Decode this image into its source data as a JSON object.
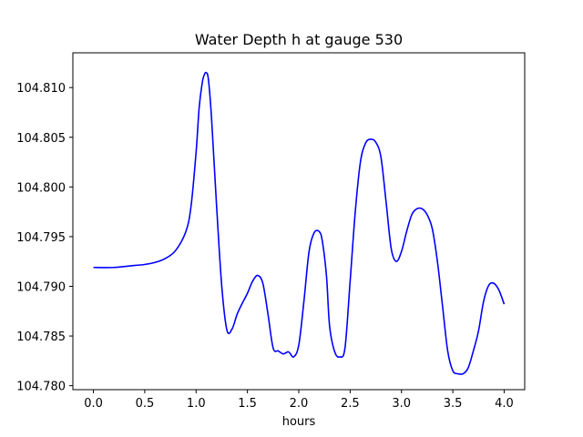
{
  "chart_data": {
    "type": "line",
    "title": "Water Depth h at gauge 530",
    "xlabel": "hours",
    "ylabel": "",
    "xlim": [
      -0.2,
      4.2
    ],
    "ylim": [
      104.7796,
      104.8135
    ],
    "x_ticks": [
      0.0,
      0.5,
      1.0,
      1.5,
      2.0,
      2.5,
      3.0,
      3.5,
      4.0
    ],
    "x_tick_labels": [
      "0.0",
      "0.5",
      "1.0",
      "1.5",
      "2.0",
      "2.5",
      "3.0",
      "3.5",
      "4.0"
    ],
    "y_ticks": [
      104.78,
      104.785,
      104.79,
      104.795,
      104.8,
      104.805,
      104.81
    ],
    "y_tick_labels": [
      "104.780",
      "104.785",
      "104.790",
      "104.795",
      "104.800",
      "104.805",
      "104.810"
    ],
    "grid": false,
    "series": [
      {
        "color": "#0000ff",
        "x": [
          0.0,
          0.2,
          0.4,
          0.5,
          0.6,
          0.7,
          0.8,
          0.9,
          0.95,
          1.0,
          1.03,
          1.06,
          1.08,
          1.1,
          1.12,
          1.15,
          1.2,
          1.25,
          1.3,
          1.35,
          1.4,
          1.45,
          1.5,
          1.55,
          1.6,
          1.65,
          1.7,
          1.75,
          1.8,
          1.85,
          1.9,
          1.95,
          2.0,
          2.05,
          2.1,
          2.15,
          2.2,
          2.23,
          2.27,
          2.3,
          2.35,
          2.4,
          2.45,
          2.5,
          2.55,
          2.6,
          2.65,
          2.7,
          2.75,
          2.8,
          2.85,
          2.9,
          2.95,
          3.0,
          3.05,
          3.1,
          3.15,
          3.2,
          3.25,
          3.3,
          3.35,
          3.4,
          3.45,
          3.5,
          3.55,
          3.6,
          3.65,
          3.7,
          3.75,
          3.8,
          3.85,
          3.9,
          3.95,
          4.0
        ],
        "y": [
          104.7919,
          104.7919,
          104.7921,
          104.7922,
          104.7924,
          104.7928,
          104.7936,
          104.7955,
          104.798,
          104.8035,
          104.808,
          104.8105,
          104.8113,
          104.8115,
          104.8108,
          104.807,
          104.798,
          104.79,
          104.7856,
          104.7857,
          104.7872,
          104.7883,
          104.7893,
          104.7905,
          104.7911,
          104.7903,
          104.7872,
          104.7838,
          104.7835,
          104.7832,
          104.7834,
          104.7829,
          104.7841,
          104.7885,
          104.7935,
          104.7954,
          104.7955,
          104.7945,
          104.791,
          104.786,
          104.7834,
          104.7829,
          104.7838,
          104.7905,
          104.7975,
          104.8025,
          104.8044,
          104.8048,
          104.8045,
          104.803,
          104.7985,
          104.7938,
          104.7925,
          104.7935,
          104.7955,
          104.7972,
          104.7978,
          104.7978,
          104.7972,
          104.7958,
          104.7925,
          104.788,
          104.7835,
          104.7815,
          104.7812,
          104.7812,
          104.7818,
          104.7835,
          104.7855,
          104.7885,
          104.7901,
          104.7903,
          104.7896,
          104.7882
        ]
      }
    ]
  }
}
